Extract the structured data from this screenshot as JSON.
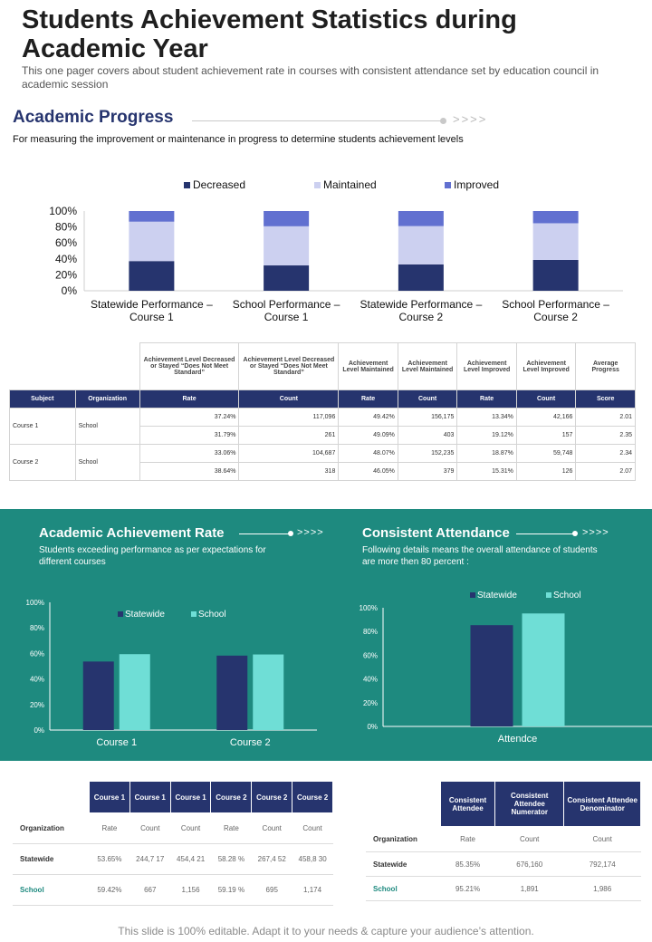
{
  "page": {
    "title": "Students Achievement Statistics during Academic Year",
    "subtitle": "This one pager covers about student achievement  rate in courses with consistent attendance set by education council in academic session",
    "footer": "This slide is 100% editable. Adapt it to your needs & capture your audience’s attention."
  },
  "progress": {
    "heading": "Academic Progress",
    "arrows": ">>>>",
    "description": "For measuring the improvement or maintenance in progress to determine students achievement levels"
  },
  "colors": {
    "navy": "#26346e",
    "lavender": "#ccd0f0",
    "blue": "#6170d0",
    "teal": "#1e8a7f",
    "aqua": "#6fded6"
  },
  "chart_data": [
    {
      "type": "bar",
      "stacked": true,
      "categories": [
        "Statewide Performance – Course 1",
        "School Performance – Course 1",
        "Statewide Performance – Course 2",
        "School Performance – Course 2"
      ],
      "series": [
        {
          "name": "Decreased",
          "values": [
            37.24,
            31.79,
            33.06,
            38.64
          ]
        },
        {
          "name": "Maintained",
          "values": [
            49.42,
            49.09,
            48.07,
            46.05
          ]
        },
        {
          "name": "Improved",
          "values": [
            13.34,
            19.12,
            18.87,
            15.31
          ]
        }
      ],
      "ytick_labels": [
        "100%",
        "80%",
        "60%",
        "40%",
        "20%",
        "0%"
      ],
      "ylim": [
        0,
        100
      ],
      "legend": "top"
    },
    {
      "type": "bar",
      "title": "Academic Achievement Rate",
      "categories": [
        "Course 1",
        "Course 2"
      ],
      "series": [
        {
          "name": "Statewide",
          "values": [
            53.65,
            58.28
          ]
        },
        {
          "name": "School",
          "values": [
            59.42,
            59.19
          ]
        }
      ],
      "ytick_labels": [
        "100%",
        "80%",
        "60%",
        "40%",
        "20%",
        "0%"
      ],
      "ylim": [
        0,
        100
      ],
      "legend": "top"
    },
    {
      "type": "bar",
      "title": "Consistent Attendance",
      "categories": [
        "Attendce"
      ],
      "series": [
        {
          "name": "Statewide",
          "values": [
            85.35
          ]
        },
        {
          "name": "School",
          "values": [
            95.21
          ]
        }
      ],
      "ytick_labels": [
        "100%",
        "80%",
        "60%",
        "40%",
        "20%",
        "0%"
      ],
      "ylim": [
        0,
        100
      ],
      "legend": "top"
    }
  ],
  "main_table": {
    "group_headers": [
      "Achievement  Level Decreased  or Stayed “Does Not Meet Standard”",
      "Achievement  Level Decreased  or Stayed “Does Not Meet Standard”",
      "Achievement Level Maintained",
      "Achievement Level Maintained",
      "Achievement Level Improved",
      "Achievement Level Improved",
      "Average Progress"
    ],
    "columns": [
      "Subject",
      "Organization",
      "Rate",
      "Count",
      "Rate",
      "Count",
      "Rate",
      "Count",
      "Score"
    ],
    "groups": [
      {
        "subject": "Course 1",
        "organization": "School",
        "rows": [
          [
            "37.24%",
            "117,096",
            "49.42%",
            "156,175",
            "13.34%",
            "42,166",
            "2.01"
          ],
          [
            "31.79%",
            "261",
            "49.09%",
            "403",
            "19.12%",
            "157",
            "2.35"
          ]
        ]
      },
      {
        "subject": "Course 2",
        "organization": "School",
        "rows": [
          [
            "33.06%",
            "104,687",
            "48.07%",
            "152,235",
            "18.87%",
            "59,748",
            "2.34"
          ],
          [
            "38.64%",
            "318",
            "46.05%",
            "379",
            "15.31%",
            "126",
            "2.07"
          ]
        ]
      }
    ]
  },
  "achievement": {
    "title": "Academic Achievement Rate",
    "arrows": ">>>>",
    "description": "Students exceeding performance as per expectations for different courses",
    "table": {
      "headers": [
        "Course 1",
        "Course 1",
        "Course 1",
        "Course 2",
        "Course 2",
        "Course 2"
      ],
      "org_label": "Organization",
      "subheaders": [
        "Rate",
        "Count",
        "Count",
        "Rate",
        "Count",
        "Count"
      ],
      "rows": [
        {
          "label": "Statewide",
          "cells": [
            "53.65%",
            "244,7 17",
            "454,4 21",
            "58.28 %",
            "267,4 52",
            "458,8 30"
          ]
        },
        {
          "label": "School",
          "cells": [
            "59.42%",
            "667",
            "1,156",
            "59.19 %",
            "695",
            "1,174"
          ]
        }
      ]
    }
  },
  "attendance": {
    "title": "Consistent Attendance",
    "arrows": ">>>>",
    "description": "Following details means the overall attendance of students are more then 80 percent :",
    "table": {
      "headers": [
        "Consistent Attendee",
        "Consistent Attendee Numerator",
        "Consistent Attendee Denominator"
      ],
      "org_label": "Organization",
      "subheaders": [
        "Rate",
        "Count",
        "Count"
      ],
      "rows": [
        {
          "label": "Statewide",
          "cells": [
            "85.35%",
            "676,160",
            "792,174"
          ]
        },
        {
          "label": "School",
          "cells": [
            "95.21%",
            "1,891",
            "1,986"
          ]
        }
      ]
    }
  }
}
